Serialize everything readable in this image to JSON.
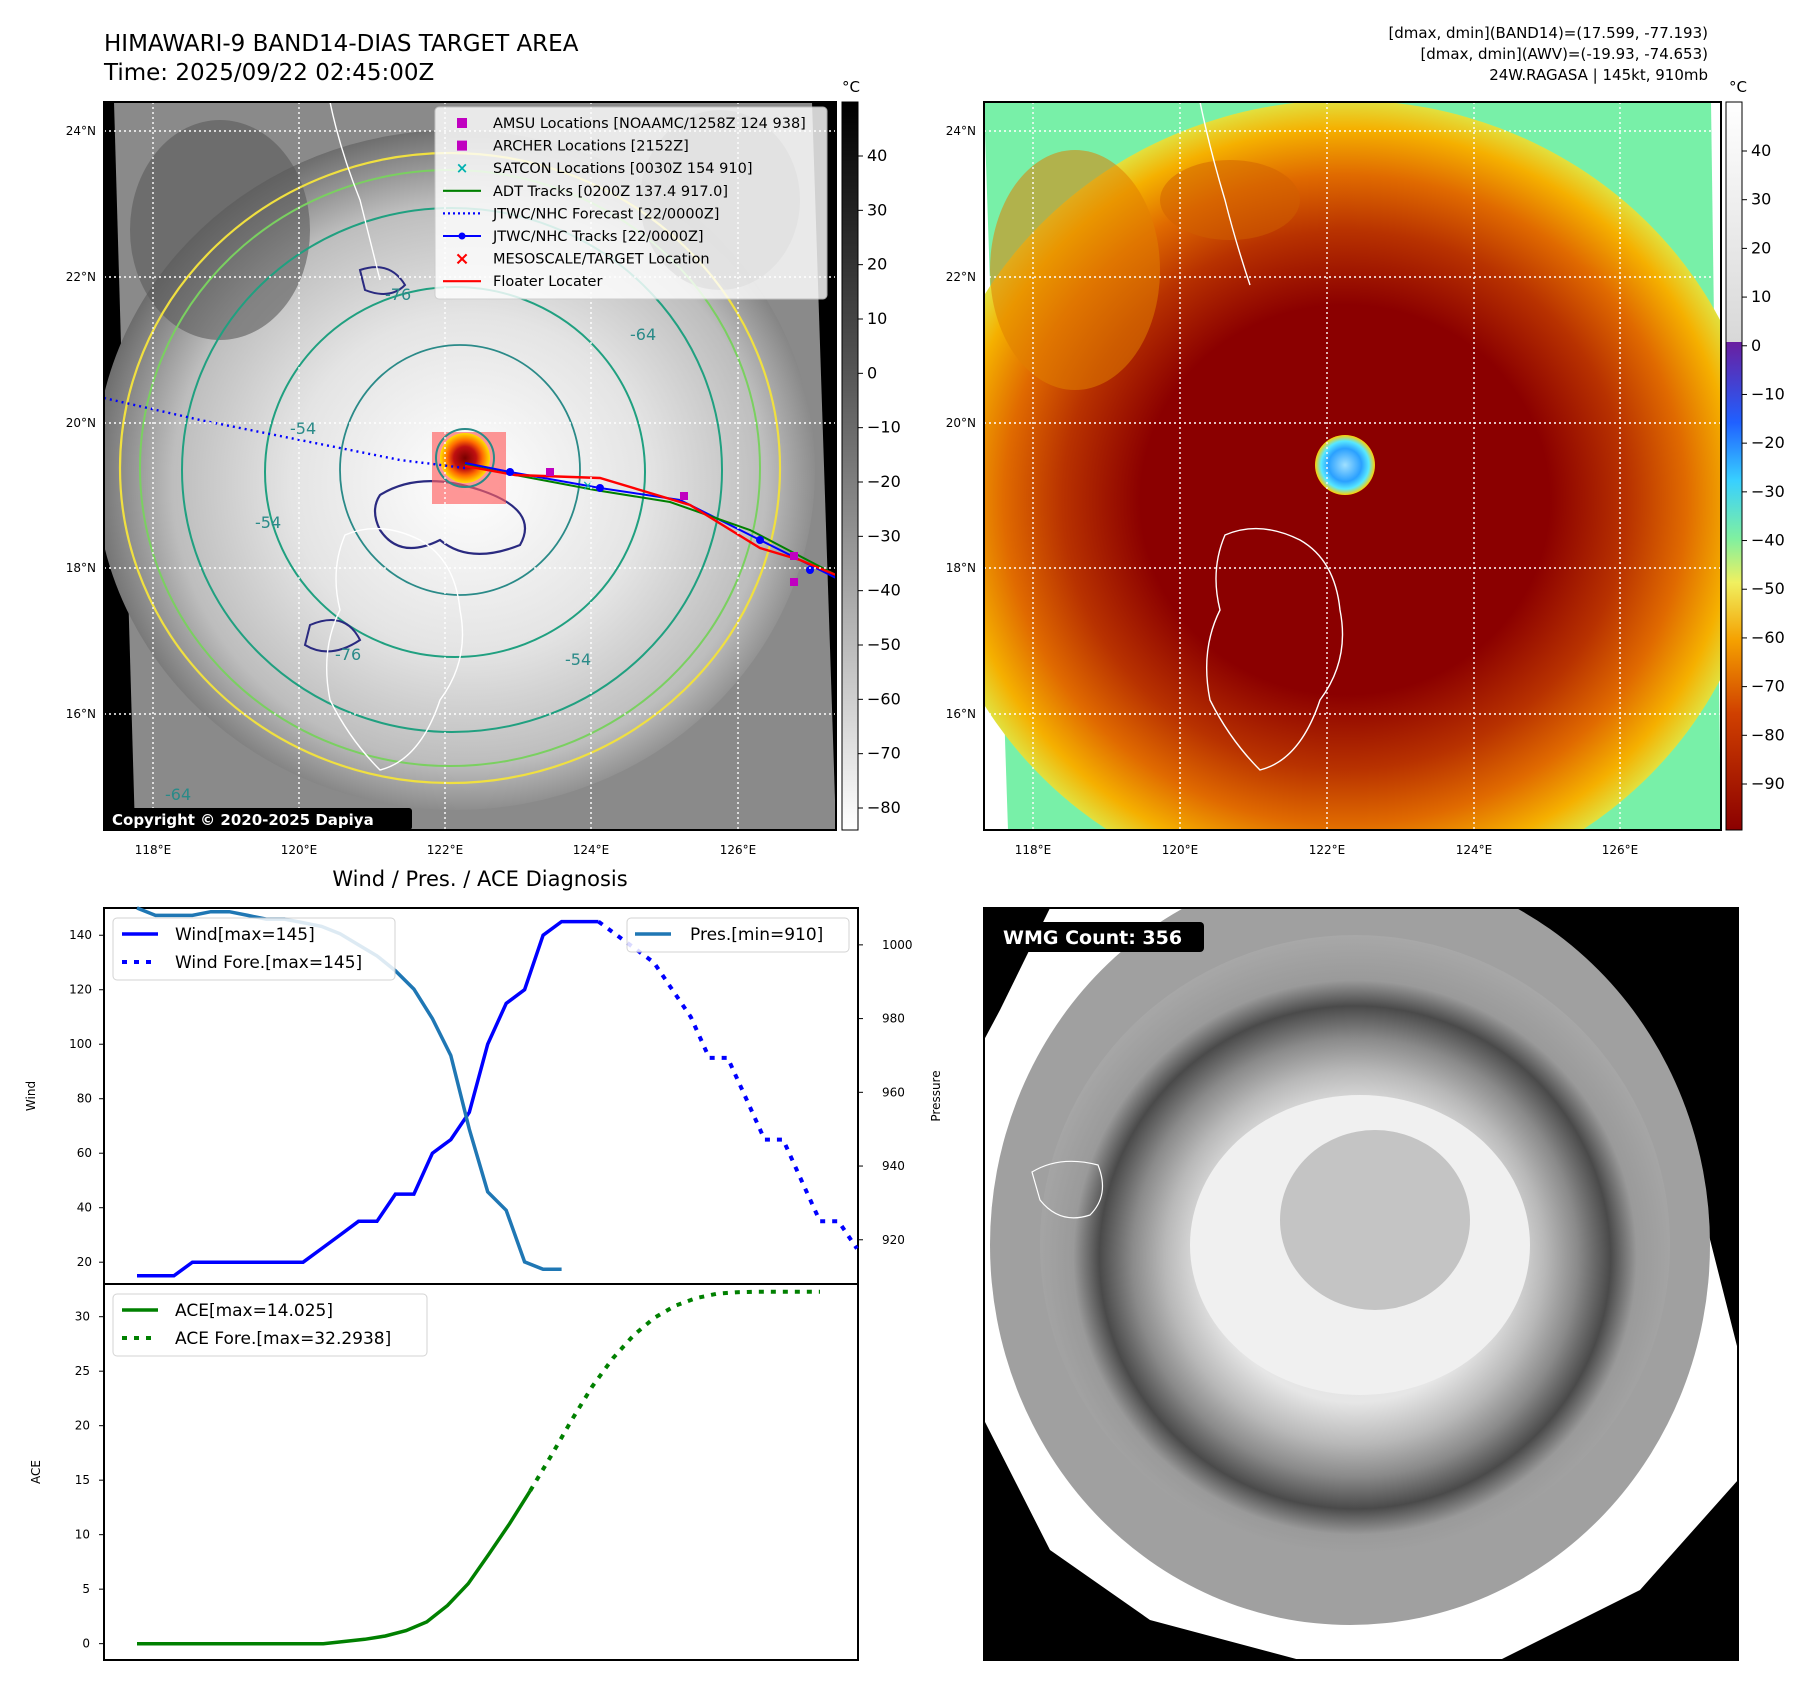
{
  "header": {
    "title": "HIMAWARI-9 BAND14-DIAS TARGET AREA",
    "time": "Time: 2025/09/22 02:45:00Z",
    "stats_line1": "[dmax, dmin](BAND14)=(17.599, -77.193)",
    "stats_line2": "[dmax, dmin](AWV)=(-19.93, -74.653)",
    "stats_line3": "24W.RAGASA | 145kt, 910mb"
  },
  "maps": {
    "lon_ticks": [
      "118°E",
      "120°E",
      "122°E",
      "124°E",
      "126°E"
    ],
    "lat_ticks": [
      "24°N",
      "22°N",
      "20°N",
      "18°N",
      "16°N"
    ],
    "copyright": "Copyright © 2020-2025 Dapiya",
    "legend": [
      {
        "label": "AMSU Locations [NOAAMC/1258Z 124 938]",
        "kind": "square",
        "color": "#c000c0"
      },
      {
        "label": "ARCHER Locations [2152Z]",
        "kind": "square",
        "color": "#c000c0"
      },
      {
        "label": "SATCON Locations [0030Z 154 910]",
        "kind": "x",
        "color": "#00b0b0"
      },
      {
        "label": "ADT Tracks [0200Z 137.4 917.0]",
        "kind": "line",
        "color": "#008000"
      },
      {
        "label": "JTWC/NHC Forecast [22/0000Z]",
        "kind": "dotted",
        "color": "#0000ff"
      },
      {
        "label": "JTWC/NHC Tracks [22/0000Z]",
        "kind": "linedot",
        "color": "#0000ff"
      },
      {
        "label": "MESOSCALE/TARGET Location",
        "kind": "redx",
        "color": "#ff0000"
      },
      {
        "label": "Floater Locater",
        "kind": "line",
        "color": "#ff0000"
      }
    ],
    "contour_labels": [
      "-76",
      "-64",
      "-54",
      "-54",
      "-76",
      "-54",
      "-64"
    ],
    "gray_colorbar": {
      "unit": "°C",
      "ticks": [
        "40",
        "30",
        "20",
        "10",
        "0",
        "−10",
        "−20",
        "−30",
        "−40",
        "−50",
        "−60",
        "−70",
        "−80"
      ]
    },
    "color_colorbar": {
      "unit": "°C",
      "ticks": [
        "40",
        "30",
        "20",
        "10",
        "0",
        "−10",
        "−20",
        "−30",
        "−40",
        "−50",
        "−60",
        "−70",
        "−80",
        "−90"
      ]
    }
  },
  "chart_data": [
    {
      "type": "line",
      "title": "Wind / Pres. / ACE Diagnosis",
      "ylabel": "Wind",
      "ylabel_right": "Pressure",
      "ylim": [
        12,
        150
      ],
      "ylim_right": [
        908,
        1010
      ],
      "yticks": [
        "140",
        "120",
        "100",
        "80",
        "60",
        "40",
        "20"
      ],
      "yticks_right": [
        "1000",
        "980",
        "960",
        "940",
        "920"
      ],
      "legend_left": [
        "Wind[max=145]",
        "Wind Fore.[max=145]"
      ],
      "legend_right": [
        "Pres.[min=910]"
      ],
      "wind": [
        15,
        15,
        15,
        20,
        20,
        20,
        20,
        20,
        20,
        20,
        25,
        30,
        35,
        35,
        45,
        45,
        60,
        65,
        75,
        100,
        115,
        120,
        140,
        145,
        145,
        145
      ],
      "wind_forecast": [
        145,
        140,
        135,
        130,
        120,
        110,
        95,
        95,
        80,
        65,
        65,
        50,
        35,
        35,
        25
      ],
      "pressure": [
        1010,
        1008,
        1008,
        1008,
        1009,
        1009,
        1008,
        1007,
        1007,
        1006,
        1005,
        1003,
        1000,
        997,
        993,
        988,
        980,
        970,
        950,
        933,
        928,
        914,
        912,
        912
      ]
    },
    {
      "type": "line",
      "ylabel": "ACE",
      "ylim": [
        -1.5,
        33
      ],
      "yticks": [
        "30",
        "25",
        "20",
        "15",
        "10",
        "5",
        "0"
      ],
      "legend": [
        "ACE[max=14.025]",
        "ACE Fore.[max=32.2938]"
      ],
      "ace": [
        0,
        0,
        0,
        0,
        0,
        0,
        0,
        0,
        0,
        0,
        0.2,
        0.4,
        0.7,
        1.2,
        2.0,
        3.5,
        5.5,
        8.2,
        11.0,
        14.025
      ],
      "ace_forecast": [
        14.025,
        17.2,
        20.5,
        23.6,
        26.2,
        28.3,
        29.9,
        31.0,
        31.7,
        32.1,
        32.25,
        32.29,
        32.29,
        32.29,
        32.29
      ]
    }
  ],
  "wmg": {
    "label": "WMG Count: 356"
  }
}
